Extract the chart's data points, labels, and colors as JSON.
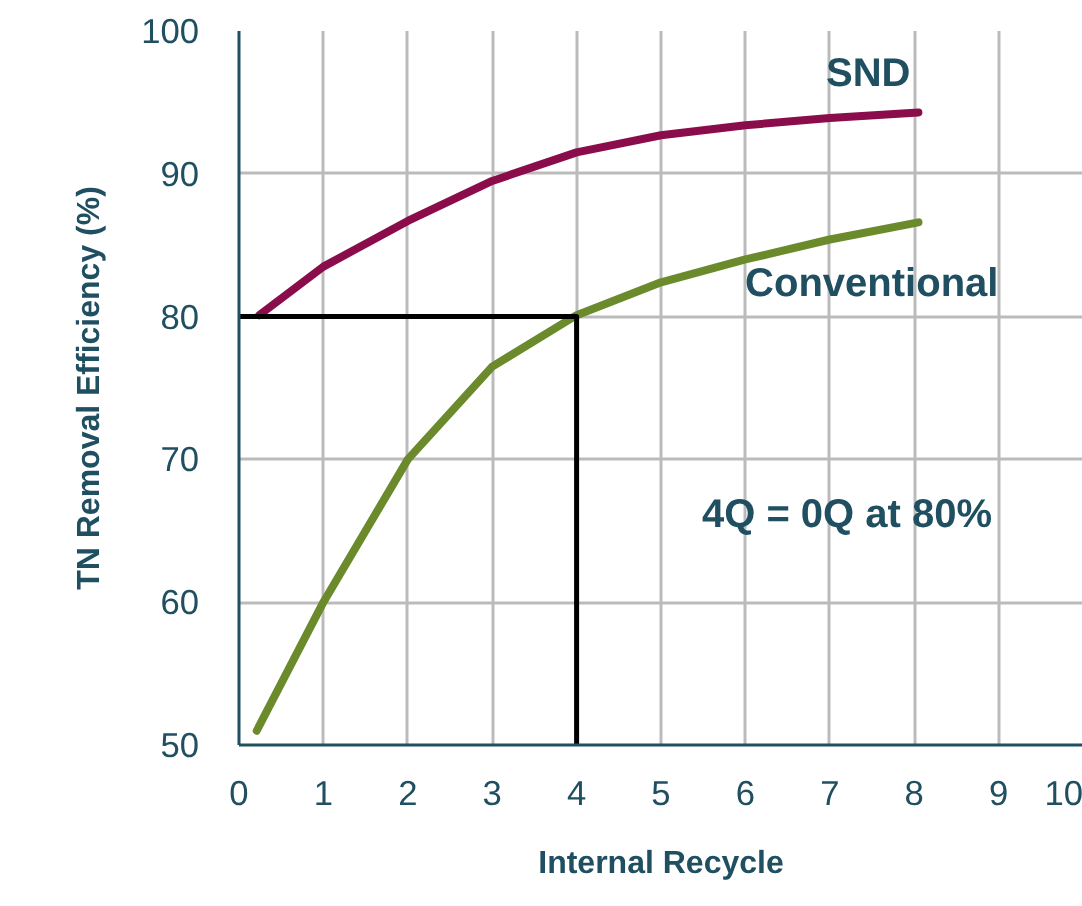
{
  "chart_data": {
    "type": "line",
    "xlabel": "Internal Recycle",
    "ylabel": "TN Removal Efficiency (%)",
    "xlim": [
      0,
      10
    ],
    "xticks": [
      0,
      1,
      2,
      3,
      4,
      5,
      6,
      7,
      8,
      9,
      10
    ],
    "ylim": [
      50,
      100
    ],
    "yticks": [
      50,
      60,
      70,
      80,
      90,
      100
    ],
    "grid": true,
    "line_style": "solid",
    "marker": "none",
    "series": [
      {
        "name": "SND",
        "color": "#8b0c4b",
        "x": [
          0.24,
          1,
          2,
          3,
          4,
          5,
          6,
          7,
          8.05
        ],
        "values": [
          80.1,
          83.5,
          86.7,
          89.5,
          91.5,
          92.7,
          93.4,
          93.9,
          94.3
        ]
      },
      {
        "name": "Conventional",
        "color": "#6b8a2b",
        "x": [
          0.21,
          1,
          2,
          3,
          4,
          5,
          6,
          7,
          8.05
        ],
        "values": [
          51.0,
          60.0,
          70.0,
          76.5,
          80.1,
          82.4,
          84.0,
          85.4,
          86.6
        ]
      },
      {
        "color": "#000000",
        "x": [
          0,
          4,
          4
        ],
        "values": [
          80,
          80,
          50
        ]
      }
    ],
    "annotations": [
      "4Q = 0Q at 80%"
    ]
  }
}
